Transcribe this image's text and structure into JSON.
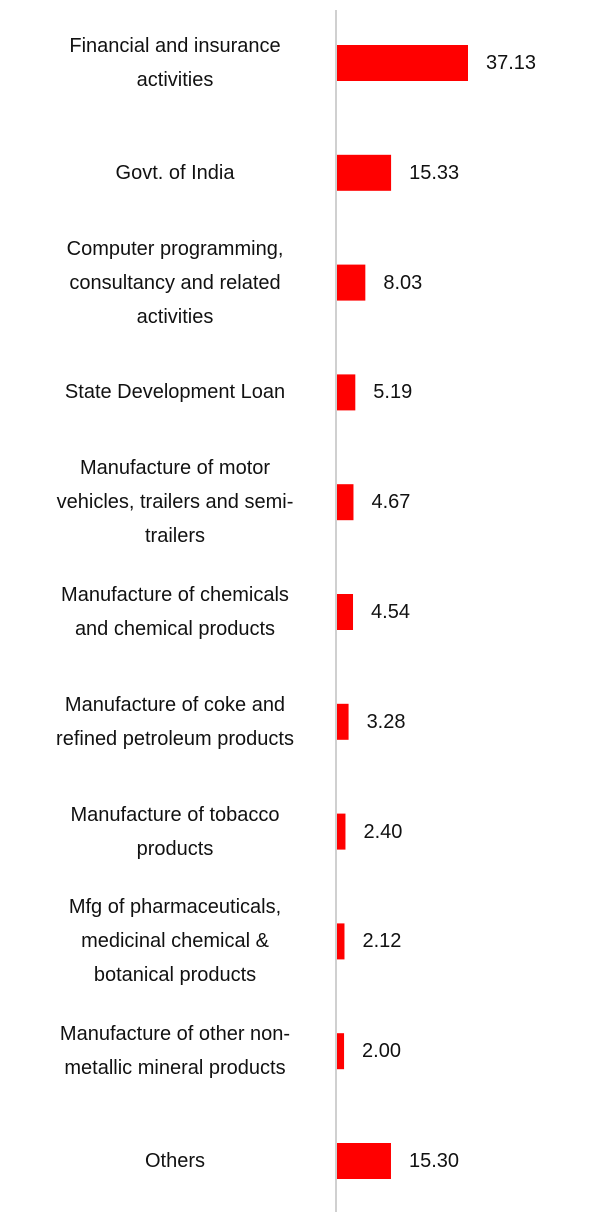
{
  "chart_data": {
    "type": "bar",
    "orientation": "horizontal",
    "categories": [
      "Financial and insurance activities",
      "Govt. of India",
      "Computer programming, consultancy and related activities",
      "State Development Loan",
      "Manufacture of motor vehicles, trailers and semi-trailers",
      "Manufacture of chemicals and chemical products",
      "Manufacture of coke and refined petroleum products",
      "Manufacture of tobacco products",
      "Mfg of pharmaceuticals, medicinal chemical & botanical products",
      "Manufacture of other non-metallic mineral products",
      "Others"
    ],
    "values": [
      37.13,
      15.33,
      8.03,
      5.19,
      4.67,
      4.54,
      3.28,
      2.4,
      2.12,
      2.0,
      15.3
    ],
    "value_labels": [
      "37.13",
      "15.33",
      "8.03",
      "5.19",
      "4.67",
      "4.54",
      "3.28",
      "2.40",
      "2.12",
      "2.00",
      "15.30"
    ],
    "bar_color": "#ff0000",
    "axis_color": "#d0d0d0",
    "xlim": [
      0,
      37.13
    ],
    "grid": false,
    "legend": "none",
    "title": "",
    "xlabel": "",
    "ylabel": ""
  }
}
